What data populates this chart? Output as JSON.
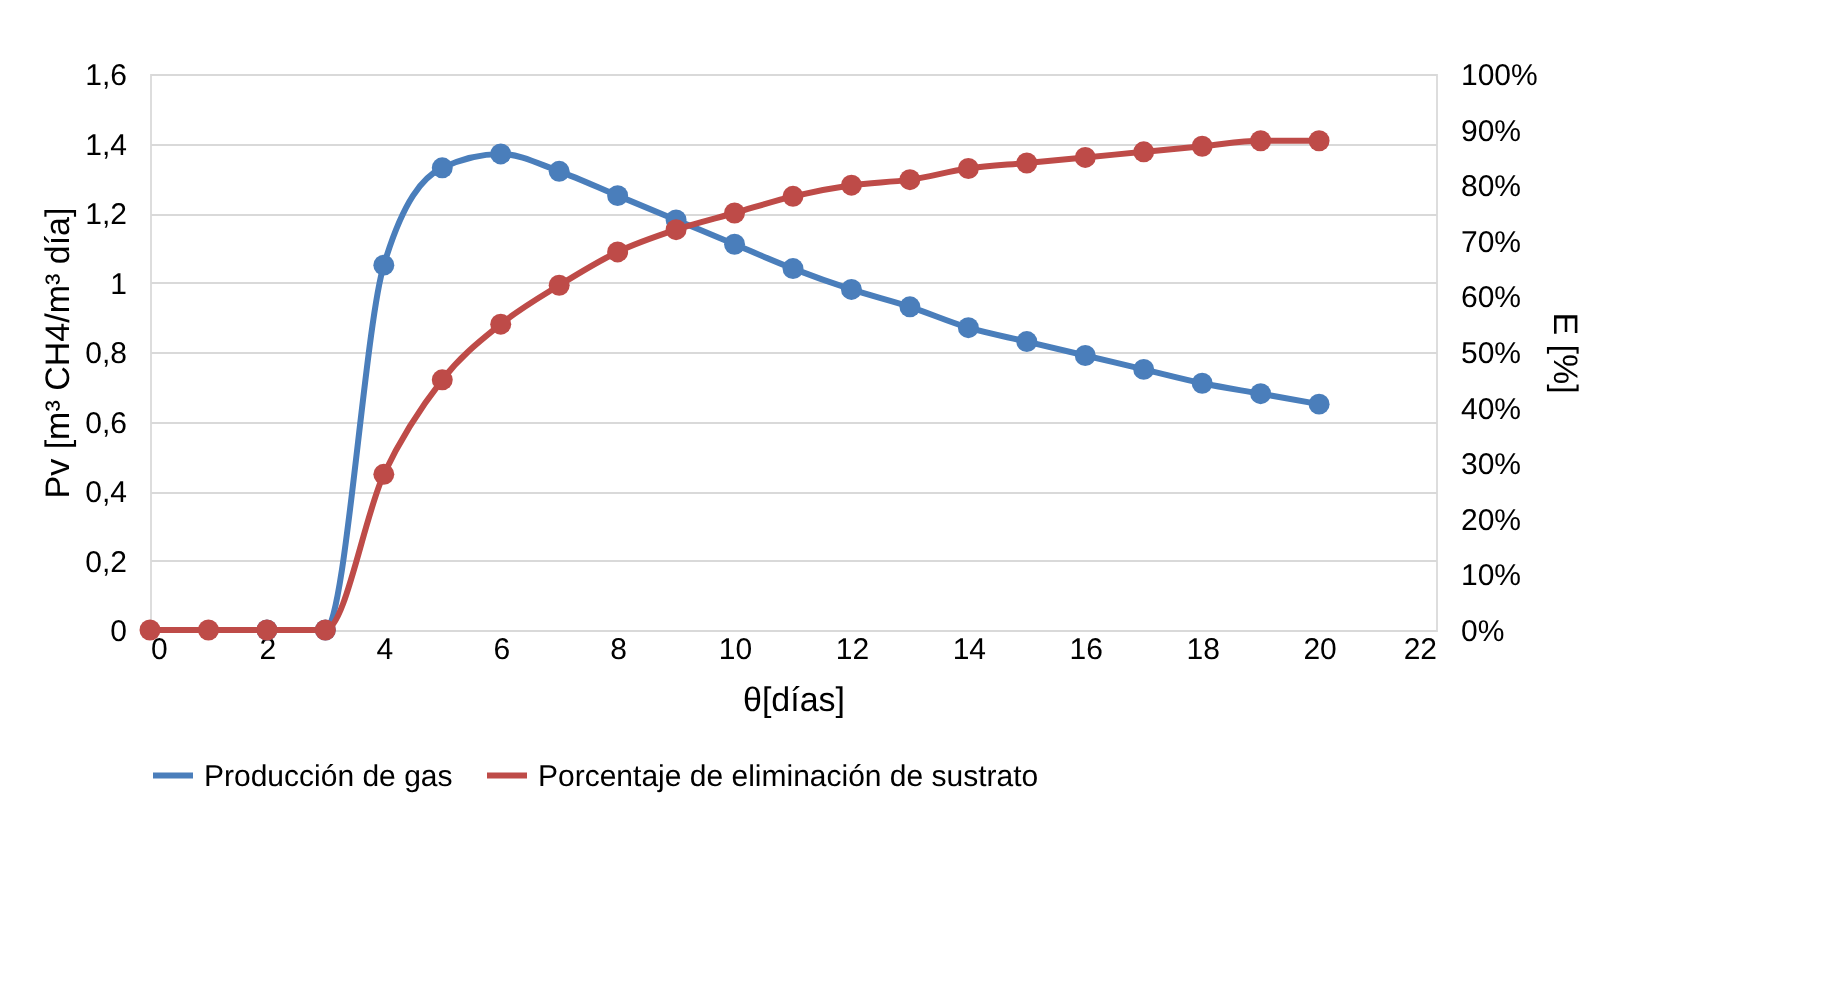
{
  "chart_data": {
    "type": "line",
    "xlabel": "θ[días]",
    "ylabel": "Pv [m³ CH4/m³ día]",
    "y2label": "E [%]",
    "x": [
      0,
      1,
      2,
      3,
      4,
      5,
      6,
      7,
      8,
      9,
      10,
      11,
      12,
      13,
      14,
      15,
      16,
      17,
      18,
      19,
      20
    ],
    "xlim": [
      0,
      22
    ],
    "xticks": [
      0,
      2,
      4,
      6,
      8,
      10,
      12,
      14,
      16,
      18,
      20,
      22
    ],
    "ylim": [
      0,
      1.6
    ],
    "yticks": [
      0,
      {
        "value": 0.2,
        "label": "0,2"
      },
      {
        "value": 0.4,
        "label": "0,4"
      },
      {
        "value": 0.6,
        "label": "0,6"
      },
      {
        "value": 0.8,
        "label": "0,8"
      },
      1,
      {
        "value": 1.2,
        "label": "1,2"
      },
      {
        "value": 1.4,
        "label": "1,4"
      },
      {
        "value": 1.6,
        "label": "1,6"
      }
    ],
    "y2lim": [
      0,
      100
    ],
    "y2ticks": [
      {
        "value": 0,
        "label": "0%"
      },
      {
        "value": 10,
        "label": "10%"
      },
      {
        "value": 20,
        "label": "20%"
      },
      {
        "value": 30,
        "label": "30%"
      },
      {
        "value": 40,
        "label": "40%"
      },
      {
        "value": 50,
        "label": "50%"
      },
      {
        "value": 60,
        "label": "60%"
      },
      {
        "value": 70,
        "label": "70%"
      },
      {
        "value": 80,
        "label": "80%"
      },
      {
        "value": 90,
        "label": "90%"
      },
      {
        "value": 100,
        "label": "100%"
      }
    ],
    "grid": "y",
    "legend": "bottom",
    "marker": "circle",
    "line_style": "solid",
    "series": [
      {
        "name": "Producción de gas",
        "color": "#4a7ebb",
        "values": [
          null,
          null,
          0,
          0,
          1.05,
          1.33,
          1.37,
          1.32,
          1.25,
          1.18,
          1.11,
          1.04,
          0.98,
          0.93,
          0.87,
          0.83,
          0.79,
          0.75,
          0.71,
          0.68,
          0.65
        ]
      },
      {
        "name": "Porcentaje de eliminación de sustrato",
        "color": "#be4b48",
        "axis": "y2",
        "values": [
          0,
          0,
          0,
          0,
          28,
          45,
          55,
          62,
          68,
          72,
          75,
          78,
          80,
          81,
          83,
          84,
          85,
          86,
          87,
          88,
          88
        ]
      }
    ]
  }
}
